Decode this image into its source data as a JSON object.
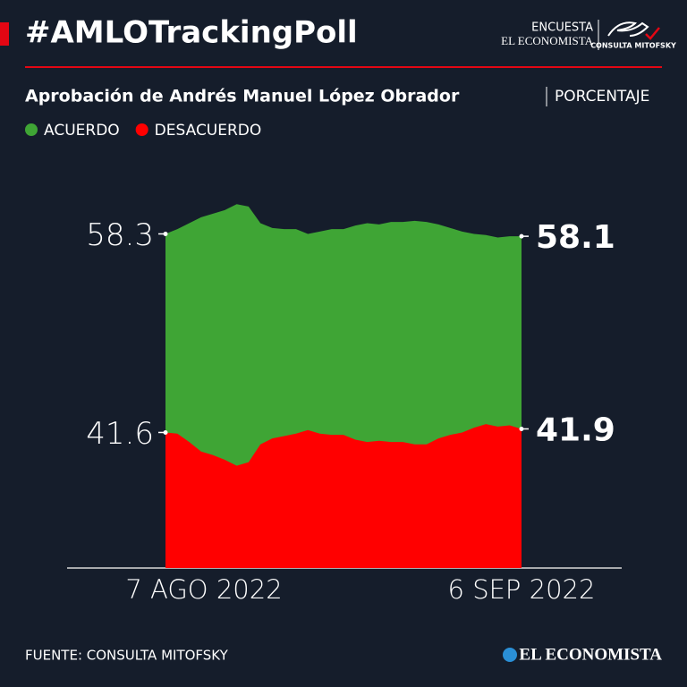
{
  "chart_data": {
    "type": "area",
    "title": "#AMLOTrackingPoll",
    "subtitle": "Aprobación de Andrés Manuel López Obrador",
    "unit": "PORCENTAJE",
    "logo_top": "ENCUESTA",
    "logo_middle": "EL ECONOMISTA",
    "logo_badge": "CONSULTA MITOFSKY",
    "source": "FUENTE: CONSULTA MITOFSKY",
    "footer_brand": "EL ECONOMISTA",
    "categories": [
      "7 AGO 2022",
      null,
      null,
      null,
      null,
      null,
      null,
      null,
      null,
      null,
      null,
      null,
      null,
      null,
      null,
      null,
      null,
      null,
      null,
      null,
      null,
      null,
      null,
      null,
      null,
      null,
      null,
      null,
      null,
      null,
      "6 SEP 2022"
    ],
    "ylim": [
      30.2,
      63
    ],
    "series": [
      {
        "name": "ACUERDO",
        "color": "#3fa535",
        "values": [
          58.3,
          58.7,
          59.2,
          59.7,
          60.0,
          60.3,
          60.8,
          60.6,
          59.2,
          58.8,
          58.7,
          58.7,
          58.3,
          58.5,
          58.7,
          58.7,
          59.0,
          59.2,
          59.1,
          59.3,
          59.3,
          59.4,
          59.3,
          59.1,
          58.8,
          58.5,
          58.3,
          58.2,
          58.0,
          58.1,
          58.1
        ]
      },
      {
        "name": "DESACUERDO",
        "color": "#ff0000",
        "values": [
          41.6,
          41.5,
          40.8,
          40.0,
          39.7,
          39.3,
          38.8,
          39.1,
          40.6,
          41.1,
          41.3,
          41.5,
          41.8,
          41.5,
          41.4,
          41.4,
          41.0,
          40.8,
          40.9,
          40.8,
          40.8,
          40.6,
          40.6,
          41.1,
          41.4,
          41.6,
          42.0,
          42.3,
          42.1,
          42.2,
          41.9
        ]
      }
    ]
  }
}
